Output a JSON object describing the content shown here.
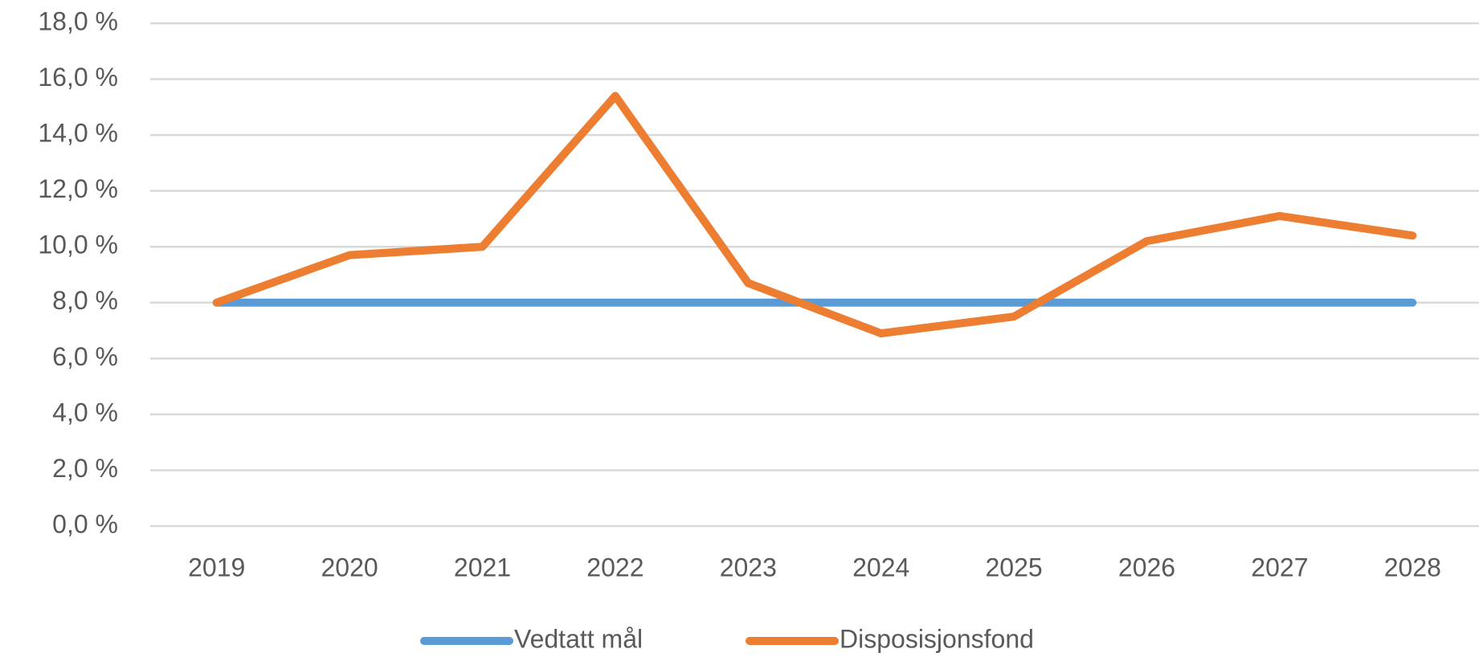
{
  "chart_data": {
    "type": "line",
    "categories": [
      "2019",
      "2020",
      "2021",
      "2022",
      "2023",
      "2024",
      "2025",
      "2026",
      "2027",
      "2028"
    ],
    "series": [
      {
        "name": "Vedtatt mål",
        "color": "#5b9bd5",
        "values": [
          8.0,
          8.0,
          8.0,
          8.0,
          8.0,
          8.0,
          8.0,
          8.0,
          8.0,
          8.0
        ]
      },
      {
        "name": "Disposisjonsfond",
        "color": "#ed7d31",
        "values": [
          8.0,
          9.7,
          10.0,
          15.4,
          8.7,
          6.9,
          7.5,
          10.2,
          11.1,
          10.4
        ]
      }
    ],
    "ylim": [
      0,
      18
    ],
    "yticks": [
      {
        "value": 0,
        "label": "0,0 %"
      },
      {
        "value": 2,
        "label": "2,0 %"
      },
      {
        "value": 4,
        "label": "4,0 %"
      },
      {
        "value": 6,
        "label": "6,0 %"
      },
      {
        "value": 8,
        "label": "8,0 %"
      },
      {
        "value": 10,
        "label": "10,0 %"
      },
      {
        "value": 12,
        "label": "12,0 %"
      },
      {
        "value": 14,
        "label": "14,0 %"
      },
      {
        "value": 16,
        "label": "16,0 %"
      },
      {
        "value": 18,
        "label": "18,0 %"
      }
    ],
    "grid": true,
    "legend": "bottom"
  }
}
